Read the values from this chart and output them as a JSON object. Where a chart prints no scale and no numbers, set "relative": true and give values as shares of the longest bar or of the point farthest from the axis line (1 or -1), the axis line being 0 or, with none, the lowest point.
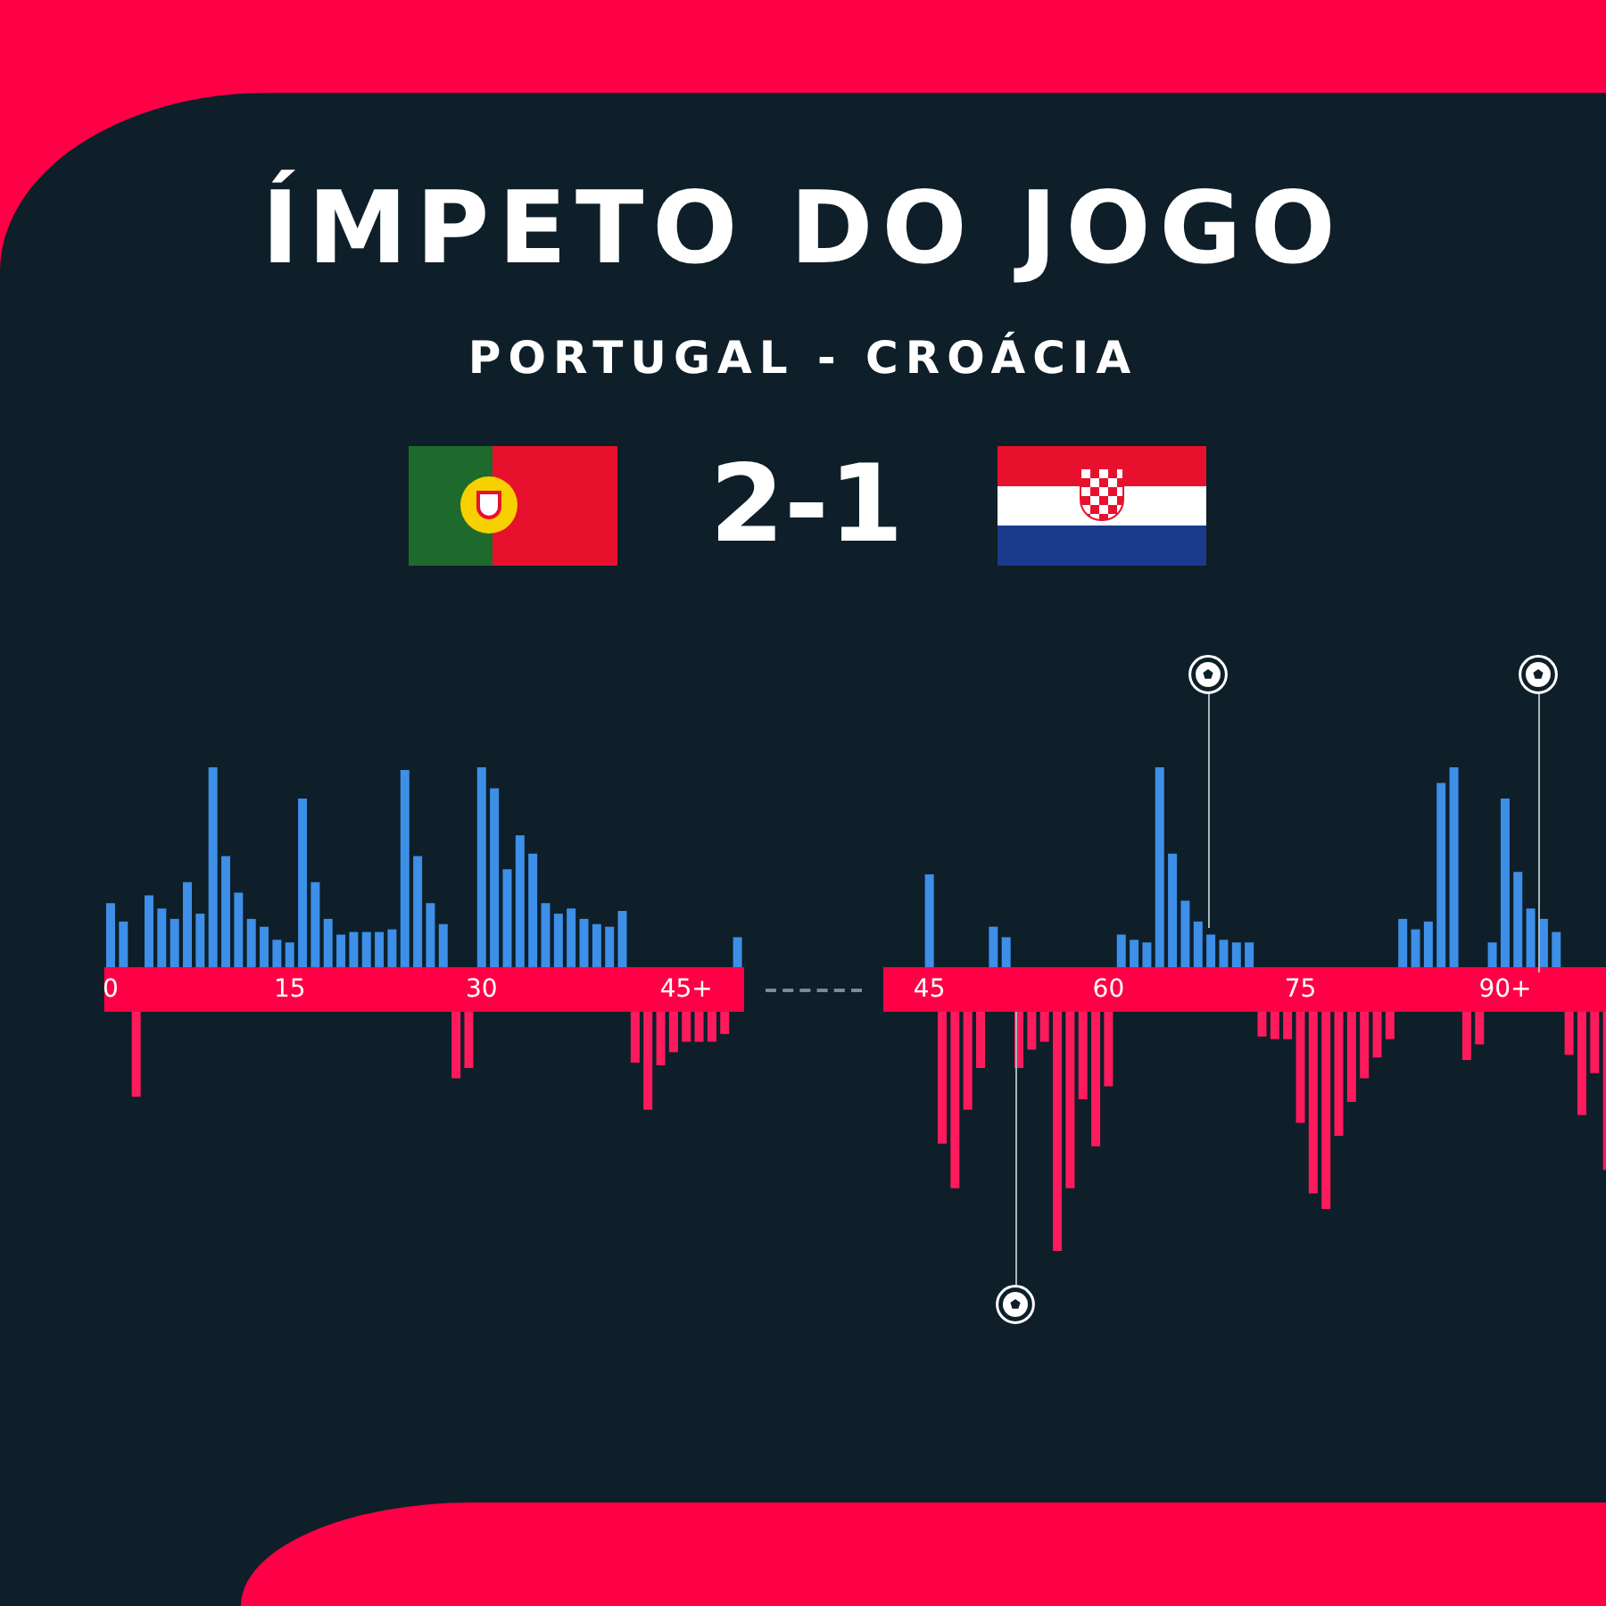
{
  "chart_data": {
    "type": "bar",
    "title": "ÍMPETO DO JOGO",
    "subtitle": "PORTUGAL - CROÁCIA",
    "annotations": [
      "2-1"
    ],
    "relative": true,
    "tick_labels": "x",
    "categories": [
      "0",
      null,
      null,
      null,
      null,
      null,
      null,
      null,
      null,
      null,
      null,
      null,
      null,
      null,
      "15",
      null,
      null,
      null,
      null,
      null,
      null,
      null,
      null,
      null,
      null,
      null,
      null,
      null,
      null,
      "30",
      null,
      null,
      null,
      null,
      null,
      null,
      null,
      null,
      null,
      null,
      null,
      null,
      null,
      null,
      null,
      "45+",
      null,
      null,
      null,
      null,
      null,
      null,
      null,
      null,
      null,
      null,
      null,
      null,
      null,
      null,
      null,
      null,
      null,
      null,
      "45",
      null,
      null,
      null,
      null,
      null,
      null,
      null,
      null,
      null,
      null,
      null,
      null,
      null,
      "60",
      null,
      null,
      null,
      null,
      null,
      null,
      null,
      null,
      null,
      null,
      null,
      null,
      null,
      null,
      "75",
      null,
      null,
      null,
      null,
      null,
      null,
      null,
      null,
      null,
      null,
      null,
      null,
      null,
      null,
      null,
      "90+",
      null,
      null,
      null,
      null,
      null,
      null,
      null,
      null
    ],
    "series": [
      {
        "color": "#3d8fe8",
        "values": [
          0.33,
          0.26,
          null,
          0.36,
          0.31,
          0.27,
          0.41,
          0.29,
          0.85,
          0.51,
          0.37,
          0.27,
          0.24,
          0.19,
          0.18,
          0.73,
          0.41,
          0.27,
          0.21,
          0.22,
          0.22,
          0.22,
          0.23,
          0.84,
          0.51,
          0.33,
          0.25,
          null,
          null,
          0.85,
          0.77,
          0.46,
          0.59,
          0.52,
          0.33,
          0.29,
          0.31,
          0.27,
          0.25,
          0.24,
          0.3,
          null,
          null,
          null,
          null,
          null,
          null,
          null,
          null,
          0.2,
          null,
          null,
          null,
          null,
          null,
          null,
          null,
          null,
          null,
          null,
          null,
          null,
          null,
          null,
          0.44,
          null,
          null,
          null,
          null,
          0.24,
          0.2,
          null,
          null,
          null,
          null,
          null,
          null,
          null,
          null,
          0.21,
          0.19,
          0.18,
          0.85,
          0.52,
          0.34,
          0.26,
          0.21,
          0.19,
          0.18,
          0.18,
          null,
          null,
          null,
          null,
          null,
          null,
          null,
          null,
          null,
          null,
          null,
          0.27,
          0.23,
          0.26,
          0.79,
          0.85,
          null,
          null,
          0.18,
          0.73,
          0.45,
          0.31,
          0.27,
          0.22,
          null,
          null,
          null,
          null
        ]
      },
      {
        "color": "#ff1a5e",
        "values": [
          null,
          null,
          -0.41,
          null,
          null,
          null,
          null,
          null,
          null,
          null,
          null,
          null,
          null,
          null,
          null,
          null,
          null,
          null,
          null,
          null,
          null,
          null,
          null,
          null,
          null,
          null,
          null,
          -0.34,
          -0.3,
          null,
          null,
          null,
          null,
          null,
          null,
          null,
          null,
          null,
          null,
          null,
          null,
          -0.28,
          -0.46,
          -0.29,
          -0.24,
          -0.2,
          -0.2,
          -0.2,
          -0.17,
          null,
          null,
          null,
          null,
          null,
          null,
          null,
          null,
          null,
          null,
          null,
          null,
          null,
          null,
          null,
          null,
          -0.59,
          -0.76,
          -0.46,
          -0.3,
          null,
          null,
          -0.3,
          -0.23,
          -0.2,
          -1,
          -0.76,
          -0.42,
          -0.6,
          -0.37,
          null,
          null,
          null,
          null,
          null,
          null,
          null,
          null,
          null,
          null,
          null,
          -0.18,
          -0.19,
          -0.19,
          -0.51,
          -0.78,
          -0.84,
          -0.56,
          -0.43,
          -0.34,
          -0.26,
          -0.19,
          null,
          null,
          null,
          null,
          null,
          -0.27,
          -0.21,
          null,
          null,
          null,
          null,
          null,
          null,
          -0.25,
          -0.48,
          -0.32,
          -0.69
        ]
      }
    ]
  }
}
